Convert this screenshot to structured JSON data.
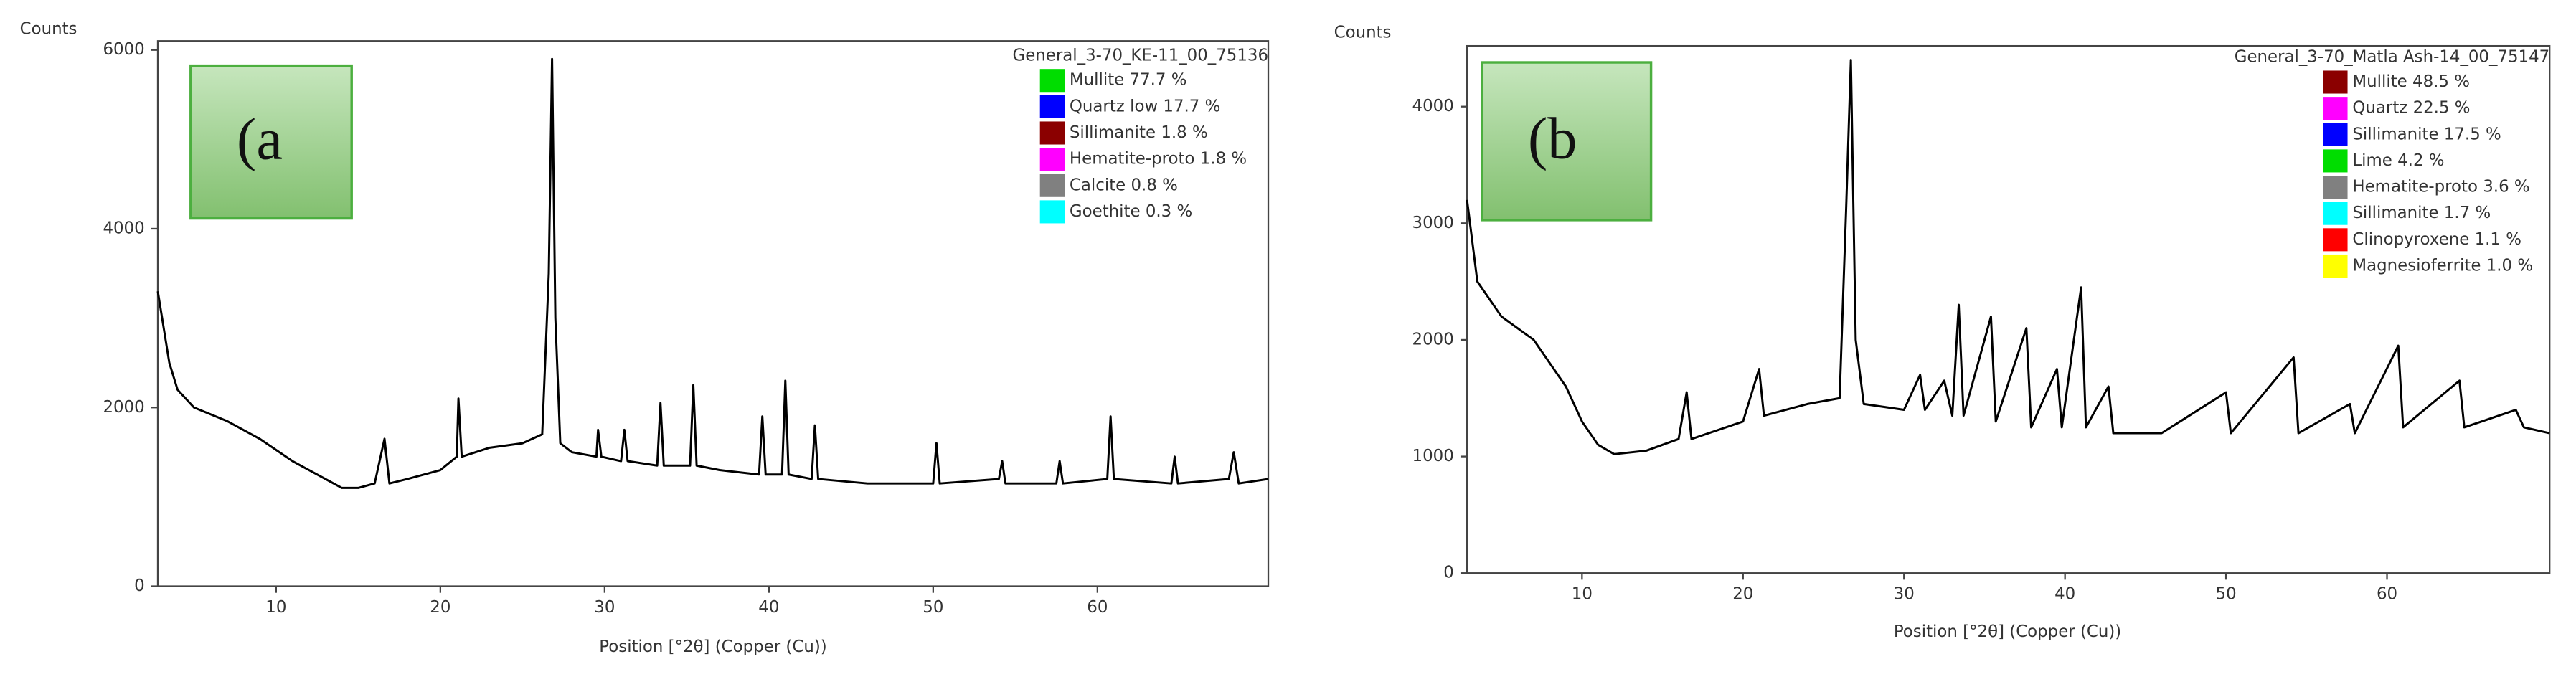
{
  "chart_data": [
    {
      "type": "line",
      "y_label": "Counts",
      "x_label": "Position [°2θ] (Copper (Cu))",
      "panel_label": "(a",
      "legend": {
        "title": "General_3-70_KE-11_00_75136",
        "entries": [
          {
            "label": "Mullite 77.7 %",
            "color": "#00dd00"
          },
          {
            "label": "Quartz low 17.7 %",
            "color": "#0000ff"
          },
          {
            "label": "Sillimanite 1.8 %",
            "color": "#8b0000"
          },
          {
            "label": "Hematite-proto 1.8 %",
            "color": "#ff00ff"
          },
          {
            "label": "Calcite 0.8 %",
            "color": "#808080"
          },
          {
            "label": "Goethite 0.3 %",
            "color": "#00ffff"
          }
        ]
      },
      "xlim": [
        2.8,
        70.4
      ],
      "xticks": [
        10,
        20,
        30,
        40,
        50,
        60
      ],
      "ylim": [
        0,
        6100
      ],
      "yticks": [
        0,
        2000,
        4000,
        6000
      ],
      "x": [
        2.8,
        3.5,
        4,
        5,
        7,
        9,
        11,
        13,
        14,
        15,
        16,
        16.6,
        16.9,
        18,
        20,
        21,
        21.1,
        21.3,
        23,
        25,
        26.2,
        26.6,
        26.8,
        27,
        27.3,
        28,
        29.5,
        29.6,
        29.8,
        31,
        31.2,
        31.4,
        33.2,
        33.4,
        33.6,
        35.2,
        35.4,
        35.6,
        37,
        39.4,
        39.6,
        39.8,
        40.8,
        41,
        41.2,
        42.6,
        42.8,
        43,
        46,
        50,
        50.2,
        50.4,
        54,
        54.2,
        54.4,
        57.5,
        57.7,
        57.9,
        60.6,
        60.8,
        61,
        64.5,
        64.7,
        64.9,
        68,
        68.3,
        68.6,
        70.4
      ],
      "series": [
        {
          "color": "#000000",
          "values": [
            3300,
            2500,
            2200,
            2000,
            1850,
            1650,
            1400,
            1200,
            1100,
            1100,
            1150,
            1650,
            1150,
            1200,
            1300,
            1450,
            2100,
            1450,
            1550,
            1600,
            1700,
            3500,
            5900,
            3000,
            1600,
            1500,
            1450,
            1750,
            1450,
            1400,
            1750,
            1400,
            1350,
            2050,
            1350,
            1350,
            2250,
            1350,
            1300,
            1250,
            1900,
            1250,
            1250,
            2300,
            1250,
            1200,
            1800,
            1200,
            1150,
            1150,
            1600,
            1150,
            1200,
            1400,
            1150,
            1150,
            1400,
            1150,
            1200,
            1900,
            1200,
            1150,
            1450,
            1150,
            1200,
            1500,
            1150,
            1200
          ]
        }
      ]
    },
    {
      "type": "line",
      "y_label": "Counts",
      "x_label": "Position [°2θ] (Copper (Cu))",
      "panel_label": "(b",
      "legend": {
        "title": "General_3-70_Matla Ash-14_00_75147",
        "entries": [
          {
            "label": "Mullite 48.5 %",
            "color": "#8b0000"
          },
          {
            "label": "Quartz 22.5 %",
            "color": "#ff00ff"
          },
          {
            "label": "Sillimanite 17.5 %",
            "color": "#0000ff"
          },
          {
            "label": "Lime 4.2 %",
            "color": "#00dd00"
          },
          {
            "label": "Hematite-proto 3.6 %",
            "color": "#808080"
          },
          {
            "label": "Sillimanite 1.7 %",
            "color": "#00ffff"
          },
          {
            "label": "Clinopyroxene 1.1 %",
            "color": "#ff0000"
          },
          {
            "label": "Magnesioferrite 1.0 %",
            "color": "#ffff00"
          }
        ]
      },
      "xlim": [
        2.86,
        70.1
      ],
      "xticks": [
        10,
        20,
        30,
        40,
        50,
        60
      ],
      "ylim": [
        0,
        4520
      ],
      "yticks": [
        0,
        1000,
        2000,
        3000,
        4000
      ],
      "x": [
        2.86,
        3.5,
        5,
        7,
        9,
        10,
        11,
        12,
        14,
        16,
        16.5,
        16.8,
        20,
        21,
        21.3,
        24,
        26,
        26.4,
        26.7,
        27,
        27.5,
        30,
        31,
        31.3,
        32.5,
        33,
        33.4,
        33.7,
        35.4,
        35.7,
        37.6,
        37.9,
        39.5,
        39.8,
        41,
        41.3,
        42.7,
        43,
        46,
        50,
        50.3,
        54.2,
        54.5,
        57.7,
        58,
        60.7,
        61,
        64.5,
        64.8,
        68,
        68.5,
        70.1
      ],
      "series": [
        {
          "color": "#000000",
          "values": [
            3200,
            2500,
            2200,
            2000,
            1600,
            1300,
            1100,
            1020,
            1050,
            1150,
            1550,
            1150,
            1300,
            1750,
            1350,
            1450,
            1500,
            3100,
            4400,
            2000,
            1450,
            1400,
            1700,
            1400,
            1650,
            1350,
            2300,
            1350,
            2200,
            1300,
            2100,
            1250,
            1750,
            1250,
            2450,
            1250,
            1600,
            1200,
            1200,
            1550,
            1200,
            1850,
            1200,
            1450,
            1200,
            1950,
            1250,
            1650,
            1250,
            1400,
            1250,
            1200
          ]
        }
      ]
    }
  ]
}
